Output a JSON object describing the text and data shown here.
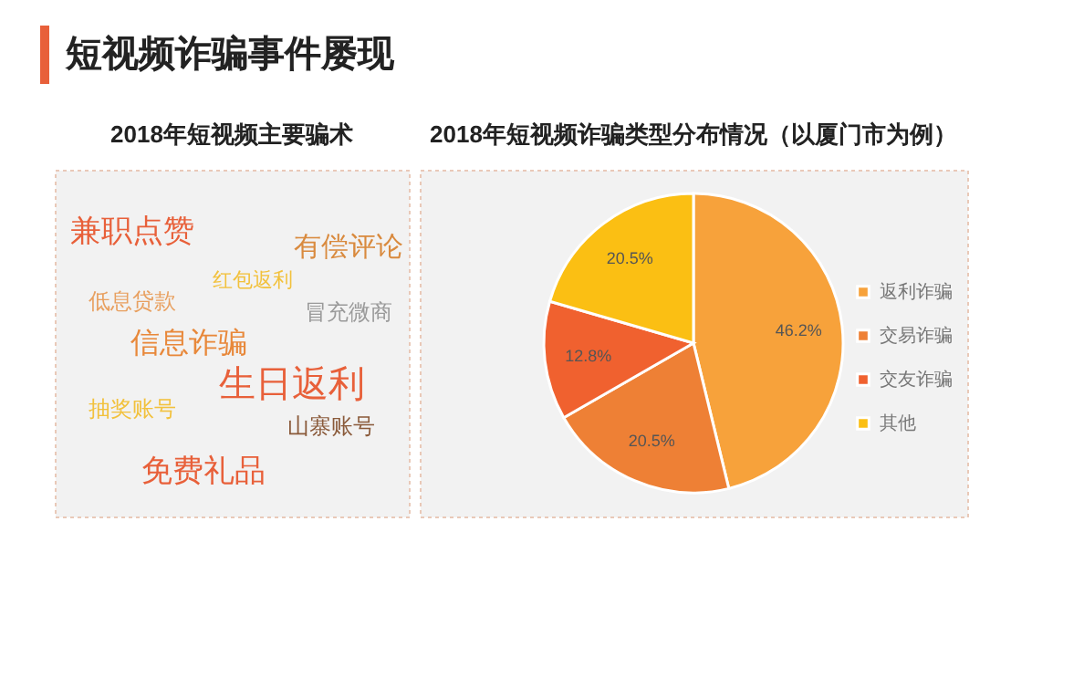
{
  "chart_data": [
    {
      "type": "other",
      "title": "2018年短视频主要骗术",
      "annotations": [
        "短视频诈骗事件屡现",
        "兼职点赞",
        "有偿评论",
        "红包返利",
        "低息贷款",
        "冒充微商",
        "信息诈骗",
        "生日返利",
        "抽奖账号",
        "山寨账号",
        "免费礼品"
      ]
    },
    {
      "type": "pie",
      "title": "2018年短视频诈骗类型分布情况（以厦门市为例）",
      "categories": [
        "返利诈骗",
        "交易诈骗",
        "交友诈骗",
        "其他"
      ],
      "values": [
        46.2,
        20.5,
        12.8,
        20.5
      ],
      "colors": [
        "#f7a23b",
        "#ee8035",
        "#f0612f",
        "#fbbf13"
      ],
      "value_labels": [
        "46.2%",
        "20.5%",
        "12.8%",
        "20.5%"
      ],
      "legend": "right"
    }
  ]
}
